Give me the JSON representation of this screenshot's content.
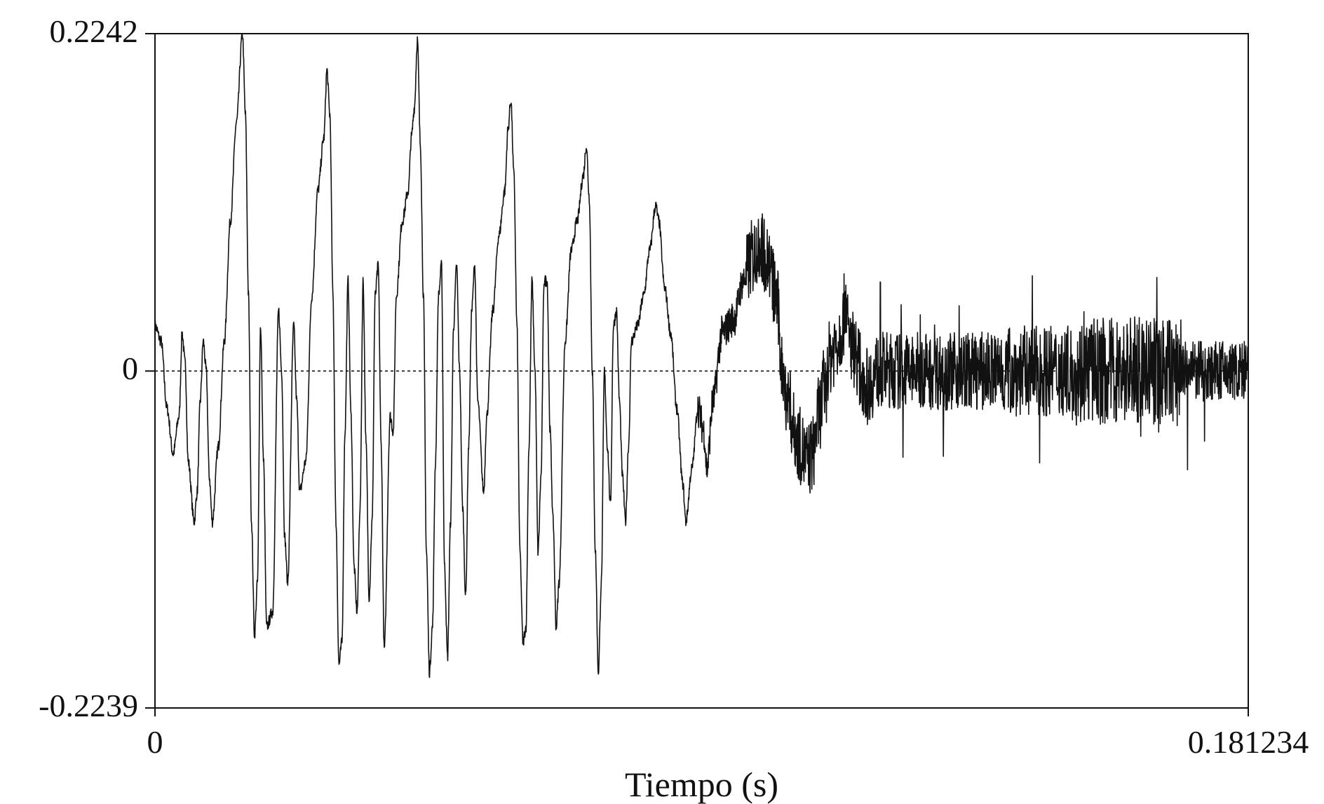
{
  "chart_data": {
    "type": "line",
    "title": "",
    "xlabel": "Tiempo (s)",
    "ylabel": "",
    "xlim": [
      0,
      0.181234
    ],
    "ylim": [
      -0.2239,
      0.2242
    ],
    "x_tick_labels": [
      "0",
      "0.181234"
    ],
    "y_tick_labels": [
      "0.2242",
      "0",
      "-0.2239"
    ],
    "y_tick_values": [
      0.2242,
      0,
      -0.2239
    ],
    "zero_line": "dashed",
    "grid": false,
    "legend": "none",
    "series": [
      {
        "points": [
          [
            0.0,
            0.03
          ],
          [
            0.001,
            0.02
          ],
          [
            0.002,
            -0.025
          ],
          [
            0.003,
            -0.055
          ],
          [
            0.004,
            -0.03
          ],
          [
            0.0045,
            0.025
          ],
          [
            0.005,
            0.005
          ],
          [
            0.0055,
            -0.06
          ],
          [
            0.0065,
            -0.1
          ],
          [
            0.007,
            -0.08
          ],
          [
            0.0075,
            -0.02
          ],
          [
            0.008,
            0.02
          ],
          [
            0.0085,
            0.0
          ],
          [
            0.009,
            -0.07
          ],
          [
            0.0095,
            -0.1
          ],
          [
            0.0105,
            -0.05
          ],
          [
            0.0115,
            0.02
          ],
          [
            0.0125,
            0.1
          ],
          [
            0.0135,
            0.165
          ],
          [
            0.0145,
            0.224
          ],
          [
            0.015,
            0.17
          ],
          [
            0.0155,
            0.05
          ],
          [
            0.016,
            -0.1
          ],
          [
            0.0165,
            -0.175
          ],
          [
            0.017,
            -0.14
          ],
          [
            0.0175,
            0.03
          ],
          [
            0.018,
            -0.06
          ],
          [
            0.0185,
            -0.17
          ],
          [
            0.0195,
            -0.16
          ],
          [
            0.0205,
            0.04
          ],
          [
            0.021,
            0.0
          ],
          [
            0.0215,
            -0.11
          ],
          [
            0.022,
            -0.14
          ],
          [
            0.023,
            0.03
          ],
          [
            0.0235,
            -0.02
          ],
          [
            0.024,
            -0.08
          ],
          [
            0.025,
            -0.06
          ],
          [
            0.026,
            0.05
          ],
          [
            0.027,
            0.12
          ],
          [
            0.028,
            0.155
          ],
          [
            0.0285,
            0.2
          ],
          [
            0.029,
            0.17
          ],
          [
            0.0295,
            0.05
          ],
          [
            0.03,
            -0.1
          ],
          [
            0.0305,
            -0.195
          ],
          [
            0.031,
            -0.18
          ],
          [
            0.0315,
            -0.04
          ],
          [
            0.032,
            0.06
          ],
          [
            0.0325,
            -0.03
          ],
          [
            0.033,
            -0.13
          ],
          [
            0.0335,
            -0.16
          ],
          [
            0.034,
            -0.09
          ],
          [
            0.0345,
            0.06
          ],
          [
            0.035,
            -0.05
          ],
          [
            0.0355,
            -0.15
          ],
          [
            0.036,
            -0.1
          ],
          [
            0.0365,
            0.05
          ],
          [
            0.037,
            0.07
          ],
          [
            0.0375,
            -0.05
          ],
          [
            0.038,
            -0.185
          ],
          [
            0.039,
            -0.03
          ],
          [
            0.0395,
            -0.04
          ],
          [
            0.04,
            0.05
          ],
          [
            0.041,
            0.1
          ],
          [
            0.042,
            0.12
          ],
          [
            0.0425,
            0.155
          ],
          [
            0.043,
            0.175
          ],
          [
            0.0435,
            0.22
          ],
          [
            0.044,
            0.15
          ],
          [
            0.0445,
            0.05
          ],
          [
            0.045,
            -0.12
          ],
          [
            0.0455,
            -0.2
          ],
          [
            0.046,
            -0.17
          ],
          [
            0.0465,
            -0.06
          ],
          [
            0.047,
            0.05
          ],
          [
            0.0475,
            0.07
          ],
          [
            0.048,
            -0.13
          ],
          [
            0.0485,
            -0.19
          ],
          [
            0.049,
            -0.1
          ],
          [
            0.0495,
            0.03
          ],
          [
            0.05,
            0.07
          ],
          [
            0.0505,
            0.0
          ],
          [
            0.051,
            -0.09
          ],
          [
            0.0515,
            -0.15
          ],
          [
            0.052,
            -0.05
          ],
          [
            0.0525,
            0.04
          ],
          [
            0.053,
            0.07
          ],
          [
            0.0535,
            -0.02
          ],
          [
            0.0545,
            -0.08
          ],
          [
            0.055,
            -0.03
          ],
          [
            0.056,
            0.04
          ],
          [
            0.057,
            0.09
          ],
          [
            0.058,
            0.12
          ],
          [
            0.0585,
            0.16
          ],
          [
            0.059,
            0.18
          ],
          [
            0.0595,
            0.13
          ],
          [
            0.06,
            0.03
          ],
          [
            0.0605,
            -0.12
          ],
          [
            0.061,
            -0.18
          ],
          [
            0.0615,
            -0.17
          ],
          [
            0.062,
            -0.05
          ],
          [
            0.0625,
            0.06
          ],
          [
            0.063,
            0.0
          ],
          [
            0.0635,
            -0.12
          ],
          [
            0.064,
            -0.07
          ],
          [
            0.0645,
            0.06
          ],
          [
            0.065,
            0.06
          ],
          [
            0.0655,
            -0.04
          ],
          [
            0.066,
            -0.1
          ],
          [
            0.0665,
            -0.17
          ],
          [
            0.067,
            -0.14
          ],
          [
            0.068,
            0.02
          ],
          [
            0.069,
            0.08
          ],
          [
            0.07,
            0.1
          ],
          [
            0.071,
            0.13
          ],
          [
            0.0715,
            0.15
          ],
          [
            0.072,
            0.115
          ],
          [
            0.0725,
            0.0
          ],
          [
            0.073,
            -0.12
          ],
          [
            0.0735,
            -0.2
          ],
          [
            0.074,
            -0.14
          ],
          [
            0.0745,
            0.0
          ],
          [
            0.075,
            -0.05
          ],
          [
            0.0755,
            -0.09
          ],
          [
            0.076,
            0.03
          ],
          [
            0.0765,
            0.04
          ],
          [
            0.077,
            -0.02
          ],
          [
            0.0775,
            -0.07
          ],
          [
            0.078,
            -0.1
          ],
          [
            0.0785,
            -0.05
          ],
          [
            0.079,
            0.02
          ],
          [
            0.08,
            0.03
          ],
          [
            0.081,
            0.05
          ],
          [
            0.082,
            0.08
          ],
          [
            0.083,
            0.11
          ],
          [
            0.0835,
            0.1
          ],
          [
            0.0845,
            0.055
          ],
          [
            0.0855,
            0.025
          ],
          [
            0.0865,
            -0.025
          ],
          [
            0.0875,
            -0.075
          ],
          [
            0.088,
            -0.1
          ],
          [
            0.089,
            -0.065
          ],
          [
            0.09,
            -0.025
          ],
          [
            0.091,
            -0.04
          ],
          [
            0.0915,
            -0.065
          ],
          [
            0.0925,
            -0.02
          ],
          [
            0.094,
            0.025
          ],
          [
            0.096,
            0.035
          ],
          [
            0.0975,
            0.06
          ],
          [
            0.099,
            0.075
          ],
          [
            0.1,
            0.085
          ],
          [
            0.1015,
            0.075
          ],
          [
            0.103,
            0.05
          ],
          [
            0.104,
            0.0
          ],
          [
            0.105,
            -0.02
          ],
          [
            0.106,
            -0.04
          ],
          [
            0.107,
            -0.05
          ],
          [
            0.108,
            -0.06
          ],
          [
            0.109,
            -0.055
          ],
          [
            0.11,
            -0.03
          ],
          [
            0.111,
            -0.01
          ],
          [
            0.112,
            0.01
          ],
          [
            0.113,
            0.02
          ],
          [
            0.114,
            0.03
          ],
          [
            0.1145,
            0.05
          ],
          [
            0.115,
            0.02
          ],
          [
            0.116,
            0.015
          ],
          [
            0.117,
            0.0
          ],
          [
            0.118,
            -0.01
          ],
          [
            0.12,
            0.0
          ],
          [
            0.125,
            0.0
          ],
          [
            0.13,
            0.0
          ],
          [
            0.14,
            0.0
          ],
          [
            0.15,
            0.0
          ],
          [
            0.155,
            0.0
          ],
          [
            0.16,
            0.0
          ],
          [
            0.17,
            0.0
          ],
          [
            0.175,
            0.0
          ],
          [
            0.181234,
            0.0
          ]
        ]
      }
    ]
  }
}
